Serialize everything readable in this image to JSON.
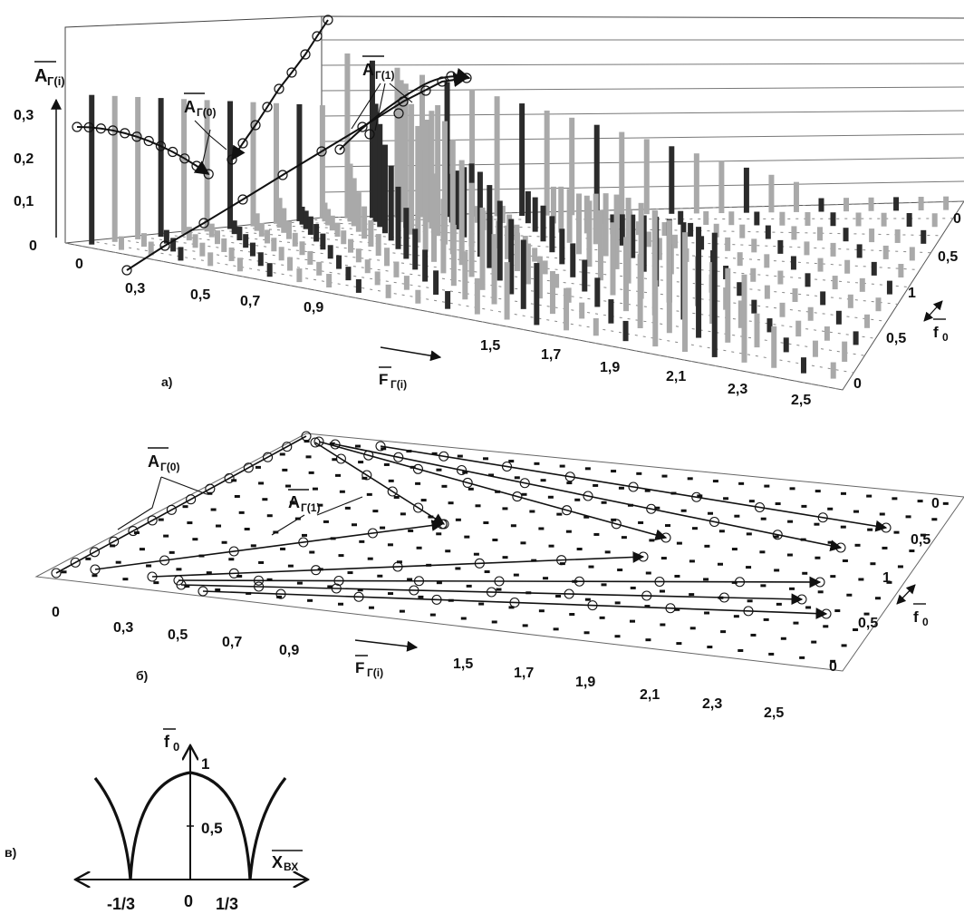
{
  "panel_a": {
    "caption": "а)",
    "z_axis_symbol": "A",
    "z_axis_sub": "Г(i)",
    "z_ticks": [
      "0",
      "0,1",
      "0,2",
      "0,3"
    ],
    "x_axis_symbol": "F",
    "x_axis_sub": "Г(i)",
    "x_ticks": [
      "0",
      "0,3",
      "0,5",
      "0,7",
      "0,9",
      "1,5",
      "1,7",
      "1,9",
      "2,1",
      "2,3",
      "2,5"
    ],
    "y_ticks": [
      "0",
      "0,5",
      "1",
      "0,5",
      "0"
    ],
    "y_axis_symbol": "f",
    "y_axis_sub": "0",
    "curve_labels": [
      {
        "symbol": "A",
        "sub": "Г(0)"
      },
      {
        "symbol": "A",
        "sub": "Г(1)"
      }
    ]
  },
  "panel_b": {
    "caption": "б)",
    "x_axis_symbol": "F",
    "x_axis_sub": "Г(i)",
    "x_ticks": [
      "0",
      "0,3",
      "0,5",
      "0,7",
      "0,9",
      "1,5",
      "1,7",
      "1,9",
      "2,1",
      "2,3",
      "2,5"
    ],
    "y_ticks": [
      "0",
      "0,5",
      "1",
      "0,5",
      "0"
    ],
    "y_axis_symbol": "f",
    "y_axis_sub": "0",
    "curve_labels": [
      {
        "symbol": "A",
        "sub": "Г(0)"
      },
      {
        "symbol": "A",
        "sub": "Г(1)"
      }
    ]
  },
  "panel_c": {
    "caption": "в)",
    "y_axis_symbol": "f",
    "y_axis_sub": "0",
    "x_axis_symbol": "X",
    "x_axis_sub": "ВХ",
    "y_ticks": [
      "1",
      "0,5"
    ],
    "x_ticks": [
      "-1/3",
      "0",
      "1/3"
    ]
  },
  "colors": {
    "ink": "#111111",
    "bar_light": "#a9a9a9",
    "bar_dark": "#2b2b2b",
    "grid": "#888888"
  }
}
